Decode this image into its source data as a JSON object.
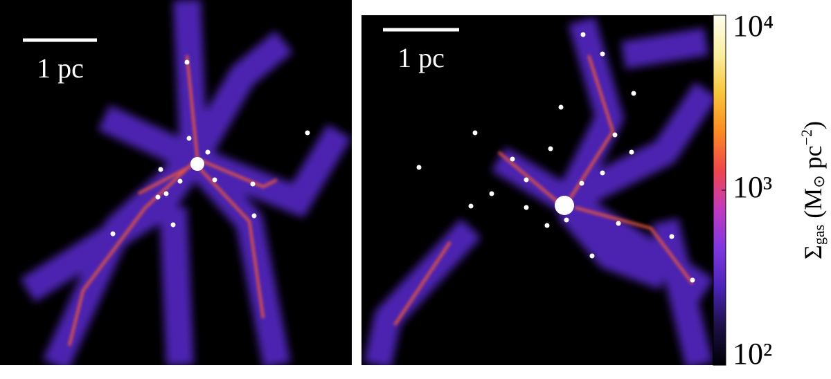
{
  "chart_data": {
    "type": "image-colorbar",
    "panels": [
      {
        "scale_bar_label": "1 pc"
      },
      {
        "scale_bar_label": "1 pc"
      }
    ],
    "colorbar": {
      "clim": [
        100,
        10000
      ],
      "log_scale": true,
      "ticks": [
        {
          "value": 100,
          "label": "10²"
        },
        {
          "value": 1000,
          "label": "10³"
        },
        {
          "value": 10000,
          "label": "10⁴"
        }
      ],
      "label_parts": [
        {
          "text": "Σ"
        },
        {
          "text": "gas",
          "sub": true
        },
        {
          "text": " (M"
        },
        {
          "text": "⊙",
          "sub": true
        },
        {
          "text": " pc"
        },
        {
          "text": "−2",
          "sup": true
        },
        {
          "text": ")"
        }
      ],
      "colors": [
        "#000004",
        "#1c1046",
        "#4a24b8",
        "#7f37e0",
        "#c03ac0",
        "#f0454c",
        "#fb8a23",
        "#f9c53a",
        "#fbeea0",
        "#fcfdf0"
      ]
    }
  }
}
